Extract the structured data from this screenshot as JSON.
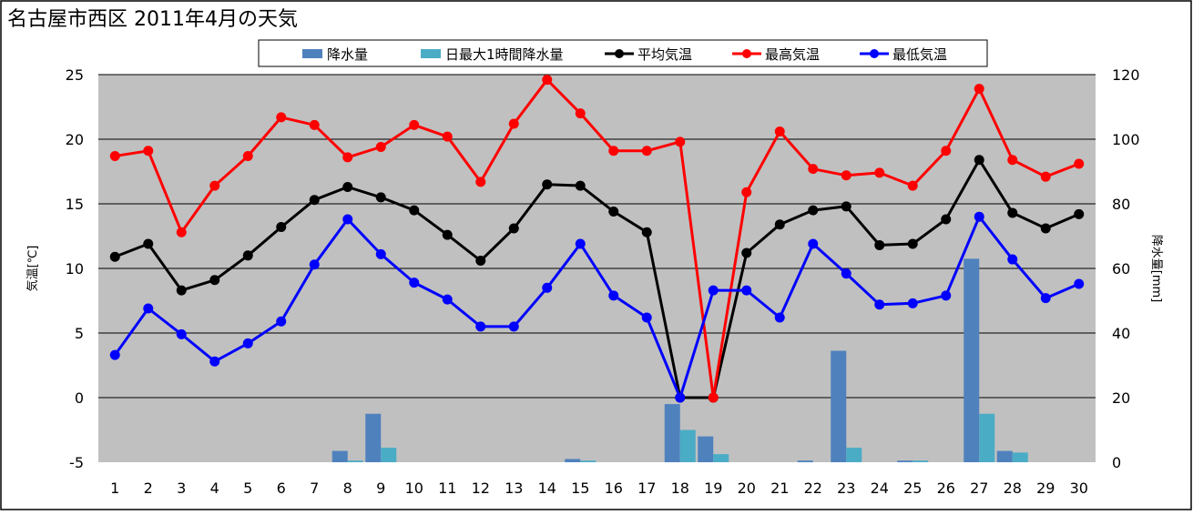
{
  "chart_data": {
    "type": "bar+line",
    "title": "名古屋市西区  2011年4月の天気",
    "ylabel_left": "気温[℃]",
    "ylabel_right": "降水量[mm]",
    "ylim_left": [
      -5,
      25
    ],
    "yticks_left": [
      -5,
      0,
      5,
      10,
      15,
      20,
      25
    ],
    "ylim_right": [
      0,
      120
    ],
    "yticks_right": [
      0,
      20,
      40,
      60,
      80,
      100,
      120
    ],
    "grid": true,
    "legend_position": "top",
    "categories": [
      1,
      2,
      3,
      4,
      5,
      6,
      7,
      8,
      9,
      10,
      11,
      12,
      13,
      14,
      15,
      16,
      17,
      18,
      19,
      20,
      21,
      22,
      23,
      24,
      25,
      26,
      27,
      28,
      29,
      30
    ],
    "bars": [
      {
        "name": "降水量",
        "color": "#4f81bd",
        "values": [
          0,
          0,
          0,
          0,
          0,
          0,
          0,
          3.5,
          15,
          0,
          0,
          0,
          0,
          0,
          1,
          0,
          0,
          18,
          8,
          0,
          0,
          0.5,
          34.5,
          0,
          0.5,
          0,
          63,
          3.5,
          0,
          0
        ]
      },
      {
        "name": "日最大1時間降水量",
        "color": "#4bacc6",
        "values": [
          0,
          0,
          0,
          0,
          0,
          0,
          0,
          0.5,
          4.5,
          0,
          0,
          0,
          0,
          0,
          0.5,
          0,
          0,
          10,
          2.5,
          0,
          0,
          0,
          4.5,
          0,
          0.5,
          0,
          15,
          3,
          0,
          0
        ]
      }
    ],
    "series": [
      {
        "name": "平均気温",
        "color": "#000000",
        "values": [
          10.9,
          11.9,
          8.3,
          9.1,
          11.0,
          13.2,
          15.3,
          16.3,
          15.5,
          14.5,
          12.6,
          10.6,
          13.1,
          16.5,
          16.4,
          14.4,
          12.8,
          0,
          0,
          11.2,
          13.4,
          14.5,
          14.8,
          11.8,
          11.9,
          13.8,
          18.4,
          14.3,
          13.1,
          14.2
        ]
      },
      {
        "name": "最高気温",
        "color": "#ff0000",
        "values": [
          18.7,
          19.1,
          12.8,
          16.4,
          18.7,
          21.7,
          21.1,
          18.6,
          19.4,
          21.1,
          20.2,
          16.7,
          21.2,
          24.6,
          22.0,
          19.1,
          19.1,
          19.8,
          0,
          15.9,
          20.6,
          17.7,
          17.2,
          17.4,
          16.4,
          19.1,
          23.9,
          18.4,
          17.1,
          18.1
        ]
      },
      {
        "name": "最低気温",
        "color": "#0000ff",
        "values": [
          3.3,
          6.9,
          4.9,
          2.8,
          4.2,
          5.9,
          10.3,
          13.8,
          11.1,
          8.9,
          7.6,
          5.5,
          5.5,
          8.5,
          11.9,
          7.9,
          6.2,
          0,
          8.3,
          8.3,
          6.2,
          11.9,
          9.6,
          7.2,
          7.3,
          7.9,
          14.0,
          10.7,
          7.7,
          8.8
        ]
      }
    ]
  }
}
